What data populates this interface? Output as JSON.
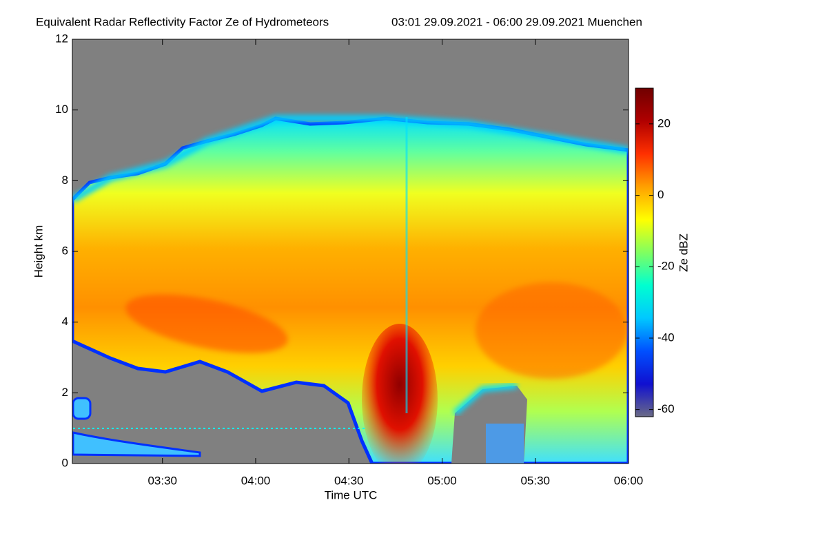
{
  "chart_data": {
    "type": "heatmap",
    "title": "Equivalent Radar Reflectivity Factor Ze of Hydrometeors",
    "subtitle": "03:01 29.09.2021 - 06:00 29.09.2021 Muenchen",
    "x_label": "Time UTC",
    "y_label": "Height km",
    "xlim": [
      181,
      360
    ],
    "xticks": [
      {
        "value": 210,
        "label": "03:30"
      },
      {
        "value": 240,
        "label": "04:00"
      },
      {
        "value": 270,
        "label": "04:30"
      },
      {
        "value": 300,
        "label": "05:00"
      },
      {
        "value": 330,
        "label": "05:30"
      },
      {
        "value": 360,
        "label": "06:00"
      }
    ],
    "ylim": [
      0,
      12
    ],
    "yticks": [
      0,
      2,
      4,
      6,
      8,
      10,
      12
    ],
    "colorbar": {
      "label": "Ze dBZ",
      "lim": [
        -62,
        30
      ],
      "ticks": [
        -60,
        -40,
        -20,
        0,
        20
      ],
      "colors": [
        "#6a6a86",
        "#1010d0",
        "#0050ff",
        "#00c8ff",
        "#00ffd0",
        "#80ff60",
        "#ffff00",
        "#ffa000",
        "#ff3000",
        "#b00000",
        "#700000"
      ]
    }
  }
}
